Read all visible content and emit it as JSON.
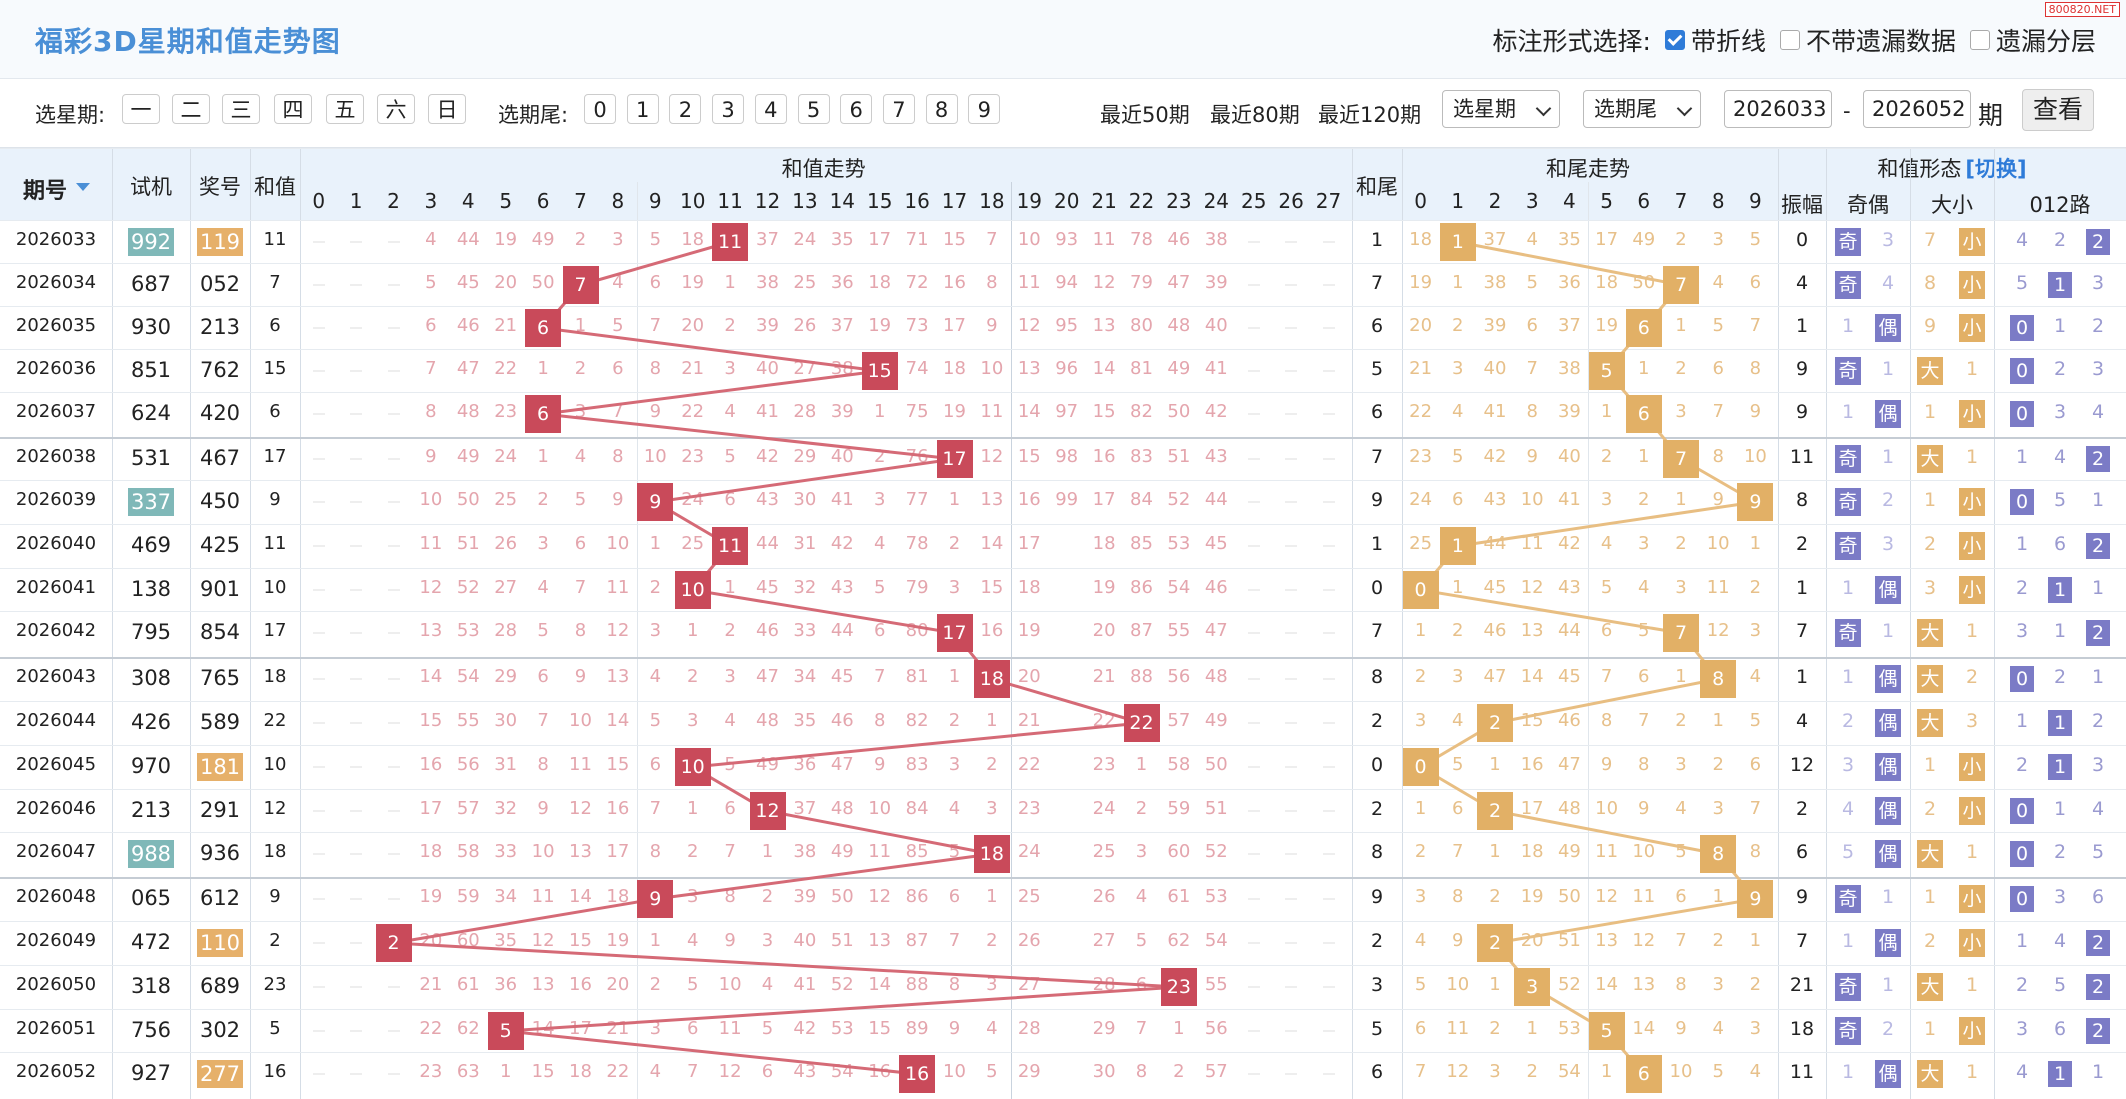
{
  "title": "福彩3D星期和值走势图",
  "watermark": "800820.NET",
  "markopts": {
    "label": "标注形式选择:",
    "o1": "带折线",
    "o2": "不带遗漏数据",
    "o3": "遗漏分层"
  },
  "controls": {
    "week_label": "选星期:",
    "weekdays": [
      "一",
      "二",
      "三",
      "四",
      "五",
      "六",
      "日"
    ],
    "tail_label": "选期尾:",
    "tails": [
      "0",
      "1",
      "2",
      "3",
      "4",
      "5",
      "6",
      "7",
      "8",
      "9"
    ],
    "recent50": "最近50期",
    "recent80": "最近80期",
    "recent120": "最近120期",
    "sel_week": "选星期",
    "sel_tail": "选期尾",
    "from": "2026033",
    "dash": "-",
    "to": "2026052",
    "qi": "期",
    "query": "查看"
  },
  "headers": {
    "issue": "期号",
    "trial": "试机",
    "draw": "奖号",
    "sum": "和值",
    "sum_trend": "和值走势",
    "tail": "和尾",
    "tail_trend": "和尾走势",
    "shape": "和值形态",
    "switch": "[切换]",
    "amp": "振幅",
    "oddeven": "奇偶",
    "bigsmall": "大小",
    "r012": "012路",
    "sum_nums": [
      "0",
      "1",
      "2",
      "3",
      "4",
      "5",
      "6",
      "7",
      "8",
      "9",
      "10",
      "11",
      "12",
      "13",
      "14",
      "15",
      "16",
      "17",
      "18",
      "19",
      "20",
      "21",
      "22",
      "23",
      "24",
      "25",
      "26",
      "27"
    ],
    "tail_nums": [
      "0",
      "1",
      "2",
      "3",
      "4",
      "5",
      "6",
      "7",
      "8",
      "9"
    ]
  },
  "colors": {
    "sum_ball": "#c94a5a",
    "tail_ball": "#e2b066",
    "trial_hl": "#7fb8b8",
    "draw_hl": "#e6b06a",
    "odd": "#7b7bc6",
    "small": "#e2b066"
  },
  "rows": [
    {
      "issue": "2026033",
      "trial": "992",
      "trial_hl": true,
      "draw": "119",
      "draw_hl": true,
      "sum": "11",
      "tail": "1",
      "amp": "0",
      "oe": "奇",
      "bs": "小",
      "r": "2",
      "sv": [
        "",
        "",
        "",
        "4",
        "44",
        "19",
        "49",
        "2",
        "3",
        "5",
        "18",
        "",
        "37",
        "24",
        "35",
        "17",
        "71",
        "15",
        "7",
        "10",
        "93",
        "11",
        "78",
        "46",
        "38",
        "",
        "",
        ""
      ],
      "tv": [
        "18",
        "",
        "37",
        "4",
        "35",
        "17",
        "49",
        "2",
        "3",
        "5"
      ],
      "oev": [
        "",
        "3"
      ],
      "bsv": [
        "7",
        ""
      ],
      "rv": [
        "4",
        "2",
        ""
      ]
    },
    {
      "issue": "2026034",
      "trial": "687",
      "draw": "052",
      "sum": "7",
      "tail": "7",
      "amp": "4",
      "oe": "奇",
      "bs": "小",
      "r": "1",
      "sv": [
        "",
        "",
        "",
        "5",
        "45",
        "20",
        "50",
        "",
        "4",
        "6",
        "19",
        "1",
        "38",
        "25",
        "36",
        "18",
        "72",
        "16",
        "8",
        "11",
        "94",
        "12",
        "79",
        "47",
        "39",
        "",
        "",
        ""
      ],
      "tv": [
        "19",
        "1",
        "38",
        "5",
        "36",
        "18",
        "50",
        "",
        "4",
        "6"
      ],
      "oev": [
        "",
        "4"
      ],
      "bsv": [
        "8",
        ""
      ],
      "rv": [
        "5",
        "",
        "3"
      ]
    },
    {
      "issue": "2026035",
      "trial": "930",
      "draw": "213",
      "sum": "6",
      "tail": "6",
      "amp": "1",
      "oe": "偶",
      "bs": "小",
      "r": "0",
      "sv": [
        "",
        "",
        "",
        "6",
        "46",
        "21",
        "",
        "1",
        "5",
        "7",
        "20",
        "2",
        "39",
        "26",
        "37",
        "19",
        "73",
        "17",
        "9",
        "12",
        "95",
        "13",
        "80",
        "48",
        "40",
        "",
        "",
        ""
      ],
      "tv": [
        "20",
        "2",
        "39",
        "6",
        "37",
        "19",
        "",
        "1",
        "5",
        "7"
      ],
      "oev": [
        "1",
        ""
      ],
      "bsv": [
        "9",
        ""
      ],
      "rv": [
        "",
        "1",
        "2"
      ]
    },
    {
      "issue": "2026036",
      "trial": "851",
      "draw": "762",
      "sum": "15",
      "tail": "5",
      "amp": "9",
      "oe": "奇",
      "bs": "大",
      "r": "0",
      "sv": [
        "",
        "",
        "",
        "7",
        "47",
        "22",
        "1",
        "2",
        "6",
        "8",
        "21",
        "3",
        "40",
        "27",
        "38",
        "",
        "74",
        "18",
        "10",
        "13",
        "96",
        "14",
        "81",
        "49",
        "41",
        "",
        "",
        ""
      ],
      "tv": [
        "21",
        "3",
        "40",
        "7",
        "38",
        "",
        "1",
        "2",
        "6",
        "8"
      ],
      "oev": [
        "",
        "1"
      ],
      "bsv": [
        "",
        "1"
      ],
      "rv": [
        "",
        "2",
        "3"
      ]
    },
    {
      "issue": "2026037",
      "trial": "624",
      "draw": "420",
      "sum": "6",
      "tail": "6",
      "amp": "9",
      "oe": "偶",
      "bs": "小",
      "r": "0",
      "sv": [
        "",
        "",
        "",
        "8",
        "48",
        "23",
        "",
        "3",
        "7",
        "9",
        "22",
        "4",
        "41",
        "28",
        "39",
        "1",
        "75",
        "19",
        "11",
        "14",
        "97",
        "15",
        "82",
        "50",
        "42",
        "",
        "",
        ""
      ],
      "tv": [
        "22",
        "4",
        "41",
        "8",
        "39",
        "1",
        "",
        "3",
        "7",
        "9"
      ],
      "oev": [
        "1",
        ""
      ],
      "bsv": [
        "1",
        ""
      ],
      "rv": [
        "",
        "3",
        "4"
      ]
    },
    {
      "issue": "2026038",
      "trial": "531",
      "draw": "467",
      "sum": "17",
      "tail": "7",
      "amp": "11",
      "oe": "奇",
      "bs": "大",
      "r": "2",
      "sv": [
        "",
        "",
        "",
        "9",
        "49",
        "24",
        "1",
        "4",
        "8",
        "10",
        "23",
        "5",
        "42",
        "29",
        "40",
        "2",
        "76",
        "",
        "12",
        "15",
        "98",
        "16",
        "83",
        "51",
        "43",
        "",
        "",
        ""
      ],
      "tv": [
        "23",
        "5",
        "42",
        "9",
        "40",
        "2",
        "1",
        "",
        "8",
        "10"
      ],
      "oev": [
        "",
        "1"
      ],
      "bsv": [
        "",
        "1"
      ],
      "rv": [
        "1",
        "4",
        ""
      ]
    },
    {
      "issue": "2026039",
      "trial": "337",
      "trial_hl": true,
      "draw": "450",
      "sum": "9",
      "tail": "9",
      "amp": "8",
      "oe": "奇",
      "bs": "小",
      "r": "0",
      "sv": [
        "",
        "",
        "",
        "10",
        "50",
        "25",
        "2",
        "5",
        "9",
        "",
        "24",
        "6",
        "43",
        "30",
        "41",
        "3",
        "77",
        "1",
        "13",
        "16",
        "99",
        "17",
        "84",
        "52",
        "44",
        "",
        "",
        ""
      ],
      "tv": [
        "24",
        "6",
        "43",
        "10",
        "41",
        "3",
        "2",
        "1",
        "9",
        ""
      ],
      "oev": [
        "",
        "2"
      ],
      "bsv": [
        "1",
        ""
      ],
      "rv": [
        "",
        "5",
        "1"
      ]
    },
    {
      "issue": "2026040",
      "trial": "469",
      "draw": "425",
      "sum": "11",
      "tail": "1",
      "amp": "2",
      "oe": "奇",
      "bs": "小",
      "r": "2",
      "sv": [
        "",
        "",
        "",
        "11",
        "51",
        "26",
        "3",
        "6",
        "10",
        "1",
        "25",
        "",
        "44",
        "31",
        "42",
        "4",
        "78",
        "2",
        "14",
        "17",
        "",
        "18",
        "85",
        "53",
        "45",
        "",
        "",
        ""
      ],
      "tv": [
        "25",
        "",
        "44",
        "11",
        "42",
        "4",
        "3",
        "2",
        "10",
        "1"
      ],
      "oev": [
        "",
        "3"
      ],
      "bsv": [
        "2",
        ""
      ],
      "rv": [
        "1",
        "6",
        ""
      ]
    },
    {
      "issue": "2026041",
      "trial": "138",
      "draw": "901",
      "sum": "10",
      "tail": "0",
      "amp": "1",
      "oe": "偶",
      "bs": "小",
      "r": "1",
      "sv": [
        "",
        "",
        "",
        "12",
        "52",
        "27",
        "4",
        "7",
        "11",
        "2",
        "",
        "1",
        "45",
        "32",
        "43",
        "5",
        "79",
        "3",
        "15",
        "18",
        "",
        "19",
        "86",
        "54",
        "46",
        "",
        "",
        ""
      ],
      "tv": [
        "",
        "1",
        "45",
        "12",
        "43",
        "5",
        "4",
        "3",
        "11",
        "2"
      ],
      "oev": [
        "1",
        ""
      ],
      "bsv": [
        "3",
        ""
      ],
      "rv": [
        "2",
        "",
        "1"
      ]
    },
    {
      "issue": "2026042",
      "trial": "795",
      "draw": "854",
      "sum": "17",
      "tail": "7",
      "amp": "7",
      "oe": "奇",
      "bs": "大",
      "r": "2",
      "sv": [
        "",
        "",
        "",
        "13",
        "53",
        "28",
        "5",
        "8",
        "12",
        "3",
        "1",
        "2",
        "46",
        "33",
        "44",
        "6",
        "80",
        "",
        "16",
        "19",
        "",
        "20",
        "87",
        "55",
        "47",
        "",
        "",
        ""
      ],
      "tv": [
        "1",
        "2",
        "46",
        "13",
        "44",
        "6",
        "5",
        "",
        "12",
        "3"
      ],
      "oev": [
        "",
        "1"
      ],
      "bsv": [
        "",
        "1"
      ],
      "rv": [
        "3",
        "1",
        ""
      ]
    },
    {
      "issue": "2026043",
      "trial": "308",
      "draw": "765",
      "sum": "18",
      "tail": "8",
      "amp": "1",
      "oe": "偶",
      "bs": "大",
      "r": "0",
      "sv": [
        "",
        "",
        "",
        "14",
        "54",
        "29",
        "6",
        "9",
        "13",
        "4",
        "2",
        "3",
        "47",
        "34",
        "45",
        "7",
        "81",
        "1",
        "",
        "20",
        "",
        "21",
        "88",
        "56",
        "48",
        "",
        "",
        ""
      ],
      "tv": [
        "2",
        "3",
        "47",
        "14",
        "45",
        "7",
        "6",
        "1",
        "",
        "4"
      ],
      "oev": [
        "1",
        ""
      ],
      "bsv": [
        "",
        "2"
      ],
      "rv": [
        "",
        "2",
        "1"
      ]
    },
    {
      "issue": "2026044",
      "trial": "426",
      "draw": "589",
      "sum": "22",
      "tail": "2",
      "amp": "4",
      "oe": "偶",
      "bs": "大",
      "r": "1",
      "sv": [
        "",
        "",
        "",
        "15",
        "55",
        "30",
        "7",
        "10",
        "14",
        "5",
        "3",
        "4",
        "48",
        "35",
        "46",
        "8",
        "82",
        "2",
        "1",
        "21",
        "",
        "22",
        "",
        "57",
        "49",
        "",
        "",
        ""
      ],
      "tv": [
        "3",
        "4",
        "",
        "15",
        "46",
        "8",
        "7",
        "2",
        "1",
        "5"
      ],
      "oev": [
        "2",
        ""
      ],
      "bsv": [
        "",
        "3"
      ],
      "rv": [
        "1",
        "",
        "2"
      ]
    },
    {
      "issue": "2026045",
      "trial": "970",
      "draw": "181",
      "draw_hl": true,
      "sum": "10",
      "tail": "0",
      "amp": "12",
      "oe": "偶",
      "bs": "小",
      "r": "1",
      "sv": [
        "",
        "",
        "",
        "16",
        "56",
        "31",
        "8",
        "11",
        "15",
        "6",
        "",
        "5",
        "49",
        "36",
        "47",
        "9",
        "83",
        "3",
        "2",
        "22",
        "",
        "23",
        "1",
        "58",
        "50",
        "",
        "",
        ""
      ],
      "tv": [
        "",
        "5",
        "1",
        "16",
        "47",
        "9",
        "8",
        "3",
        "2",
        "6"
      ],
      "oev": [
        "3",
        ""
      ],
      "bsv": [
        "1",
        ""
      ],
      "rv": [
        "2",
        "",
        "3"
      ]
    },
    {
      "issue": "2026046",
      "trial": "213",
      "draw": "291",
      "sum": "12",
      "tail": "2",
      "amp": "2",
      "oe": "偶",
      "bs": "小",
      "r": "0",
      "sv": [
        "",
        "",
        "",
        "17",
        "57",
        "32",
        "9",
        "12",
        "16",
        "7",
        "1",
        "6",
        "",
        "37",
        "48",
        "10",
        "84",
        "4",
        "3",
        "23",
        "",
        "24",
        "2",
        "59",
        "51",
        "",
        "",
        ""
      ],
      "tv": [
        "1",
        "6",
        "",
        "17",
        "48",
        "10",
        "9",
        "4",
        "3",
        "7"
      ],
      "oev": [
        "4",
        ""
      ],
      "bsv": [
        "2",
        ""
      ],
      "rv": [
        "",
        "1",
        "4"
      ]
    },
    {
      "issue": "2026047",
      "trial": "988",
      "trial_hl": true,
      "draw": "936",
      "sum": "18",
      "tail": "8",
      "amp": "6",
      "oe": "偶",
      "bs": "大",
      "r": "0",
      "sv": [
        "",
        "",
        "",
        "18",
        "58",
        "33",
        "10",
        "13",
        "17",
        "8",
        "2",
        "7",
        "1",
        "38",
        "49",
        "11",
        "85",
        "5",
        "",
        "24",
        "",
        "25",
        "3",
        "60",
        "52",
        "",
        "",
        ""
      ],
      "tv": [
        "2",
        "7",
        "1",
        "18",
        "49",
        "11",
        "10",
        "5",
        "",
        "8"
      ],
      "oev": [
        "5",
        ""
      ],
      "bsv": [
        "",
        "1"
      ],
      "rv": [
        "",
        "2",
        "5"
      ]
    },
    {
      "issue": "2026048",
      "trial": "065",
      "draw": "612",
      "sum": "9",
      "tail": "9",
      "amp": "9",
      "oe": "奇",
      "bs": "小",
      "r": "0",
      "sv": [
        "",
        "",
        "",
        "19",
        "59",
        "34",
        "11",
        "14",
        "18",
        "",
        "3",
        "8",
        "2",
        "39",
        "50",
        "12",
        "86",
        "6",
        "1",
        "25",
        "",
        "26",
        "4",
        "61",
        "53",
        "",
        "",
        ""
      ],
      "tv": [
        "3",
        "8",
        "2",
        "19",
        "50",
        "12",
        "11",
        "6",
        "1",
        ""
      ],
      "oev": [
        "",
        "1"
      ],
      "bsv": [
        "1",
        ""
      ],
      "rv": [
        "",
        "3",
        "6"
      ]
    },
    {
      "issue": "2026049",
      "trial": "472",
      "draw": "110",
      "draw_hl": true,
      "sum": "2",
      "tail": "2",
      "amp": "7",
      "oe": "偶",
      "bs": "小",
      "r": "2",
      "sv": [
        "",
        "",
        "",
        "20",
        "60",
        "35",
        "12",
        "15",
        "19",
        "1",
        "4",
        "9",
        "3",
        "40",
        "51",
        "13",
        "87",
        "7",
        "2",
        "26",
        "",
        "27",
        "5",
        "62",
        "54",
        "",
        "",
        ""
      ],
      "tv": [
        "4",
        "9",
        "",
        "20",
        "51",
        "13",
        "12",
        "7",
        "2",
        "1"
      ],
      "oev": [
        "1",
        ""
      ],
      "bsv": [
        "2",
        ""
      ],
      "rv": [
        "1",
        "4",
        ""
      ]
    },
    {
      "issue": "2026050",
      "trial": "318",
      "draw": "689",
      "sum": "23",
      "tail": "3",
      "amp": "21",
      "oe": "奇",
      "bs": "大",
      "r": "2",
      "sv": [
        "",
        "",
        "",
        "21",
        "61",
        "36",
        "13",
        "16",
        "20",
        "2",
        "5",
        "10",
        "4",
        "41",
        "52",
        "14",
        "88",
        "8",
        "3",
        "27",
        "",
        "28",
        "6",
        "",
        "55",
        "",
        "",
        ""
      ],
      "tv": [
        "5",
        "10",
        "1",
        "",
        "52",
        "14",
        "13",
        "8",
        "3",
        "2"
      ],
      "oev": [
        "",
        "1"
      ],
      "bsv": [
        "",
        "1"
      ],
      "rv": [
        "2",
        "5",
        ""
      ]
    },
    {
      "issue": "2026051",
      "trial": "756",
      "draw": "302",
      "sum": "5",
      "tail": "5",
      "amp": "18",
      "oe": "奇",
      "bs": "小",
      "r": "2",
      "sv": [
        "",
        "",
        "",
        "22",
        "62",
        "",
        "14",
        "17",
        "21",
        "3",
        "6",
        "11",
        "5",
        "42",
        "53",
        "15",
        "89",
        "9",
        "4",
        "28",
        "",
        "29",
        "7",
        "1",
        "56",
        "",
        "",
        ""
      ],
      "tv": [
        "6",
        "11",
        "2",
        "1",
        "53",
        "",
        "14",
        "9",
        "4",
        "3"
      ],
      "oev": [
        "",
        "2"
      ],
      "bsv": [
        "1",
        ""
      ],
      "rv": [
        "3",
        "6",
        ""
      ]
    },
    {
      "issue": "2026052",
      "trial": "927",
      "draw": "277",
      "draw_hl": true,
      "sum": "16",
      "tail": "6",
      "amp": "11",
      "oe": "偶",
      "bs": "大",
      "r": "1",
      "sv": [
        "",
        "",
        "",
        "23",
        "63",
        "1",
        "15",
        "18",
        "22",
        "4",
        "7",
        "12",
        "6",
        "43",
        "54",
        "16",
        "",
        "10",
        "5",
        "29",
        "",
        "30",
        "8",
        "2",
        "57",
        "",
        "",
        ""
      ],
      "tv": [
        "7",
        "12",
        "3",
        "2",
        "54",
        "1",
        "",
        "10",
        "5",
        "4"
      ],
      "oev": [
        "1",
        ""
      ],
      "bsv": [
        "",
        "1"
      ],
      "rv": [
        "4",
        "",
        "1"
      ]
    }
  ]
}
